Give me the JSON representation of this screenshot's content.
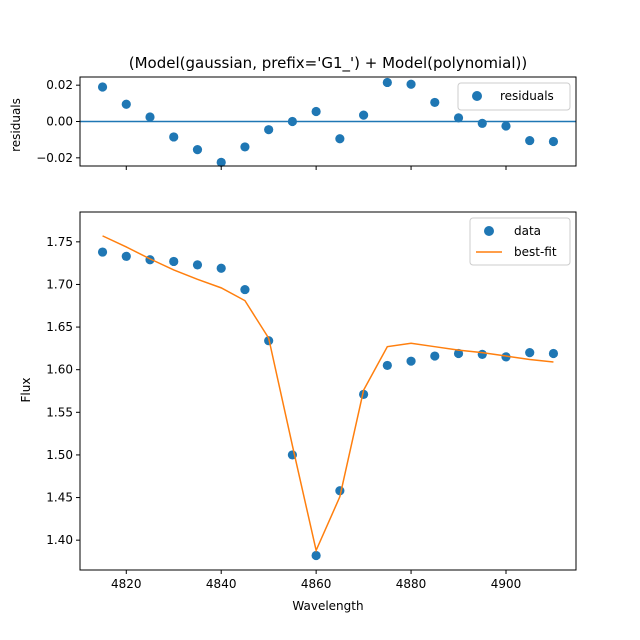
{
  "chart_data": [
    {
      "type": "scatter",
      "title": "(Model(gaussian, prefix='G1_') + Model(polynomial))",
      "xlabel": "",
      "ylabel": "residuals",
      "xlim": [
        4810.25,
        4914.75
      ],
      "ylim": [
        -0.0245,
        0.0245
      ],
      "yticks": [
        -0.02,
        0.0,
        0.02
      ],
      "ytick_labels": [
        "−0.02",
        "0.00",
        "0.02"
      ],
      "xticks": [
        4820,
        4840,
        4860,
        4880,
        4900
      ],
      "show_xtick_labels": false,
      "hline": 0,
      "legend": {
        "position": "top-right",
        "entries": [
          "residuals"
        ]
      },
      "series": [
        {
          "name": "residuals",
          "marker": "circle",
          "color": "#1f77b4",
          "x": [
            4815,
            4820,
            4825,
            4830,
            4835,
            4840,
            4845,
            4850,
            4855,
            4860,
            4865,
            4870,
            4875,
            4880,
            4885,
            4890,
            4895,
            4900,
            4905,
            4910
          ],
          "y": [
            0.019,
            0.0095,
            0.0025,
            -0.0085,
            -0.0155,
            -0.0225,
            -0.014,
            -0.0045,
            0.0,
            0.0055,
            -0.0095,
            0.0035,
            0.0215,
            0.0205,
            0.0105,
            0.002,
            -0.001,
            -0.0025,
            -0.0105,
            -0.011
          ]
        }
      ]
    },
    {
      "type": "line",
      "title": "",
      "xlabel": "Wavelength",
      "ylabel": "Flux",
      "xlim": [
        4810.25,
        4914.75
      ],
      "ylim": [
        1.365,
        1.785
      ],
      "xticks": [
        4820,
        4840,
        4860,
        4880,
        4900
      ],
      "xtick_labels": [
        "4820",
        "4840",
        "4860",
        "4880",
        "4900"
      ],
      "yticks": [
        1.4,
        1.45,
        1.5,
        1.55,
        1.6,
        1.65,
        1.7,
        1.75
      ],
      "ytick_labels": [
        "1.40",
        "1.45",
        "1.50",
        "1.55",
        "1.60",
        "1.65",
        "1.70",
        "1.75"
      ],
      "legend": {
        "position": "top-right",
        "entries": [
          "data",
          "best-fit"
        ]
      },
      "series": [
        {
          "name": "data",
          "marker": "circle",
          "color": "#1f77b4",
          "x": [
            4815,
            4820,
            4825,
            4830,
            4835,
            4840,
            4845,
            4850,
            4855,
            4860,
            4865,
            4870,
            4875,
            4880,
            4885,
            4890,
            4895,
            4900,
            4905,
            4910
          ],
          "y": [
            1.738,
            1.733,
            1.729,
            1.727,
            1.723,
            1.719,
            1.694,
            1.634,
            1.5,
            1.382,
            1.458,
            1.571,
            1.605,
            1.61,
            1.616,
            1.619,
            1.618,
            1.615,
            1.62,
            1.619
          ]
        },
        {
          "name": "best-fit",
          "line": true,
          "color": "#ff7f0e",
          "x": [
            4815,
            4820,
            4825,
            4830,
            4835,
            4840,
            4845,
            4850,
            4855,
            4860,
            4865,
            4870,
            4875,
            4880,
            4885,
            4890,
            4895,
            4900,
            4905,
            4910
          ],
          "y": [
            1.757,
            1.744,
            1.73,
            1.717,
            1.706,
            1.696,
            1.681,
            1.637,
            1.511,
            1.388,
            1.451,
            1.576,
            1.627,
            1.631,
            1.627,
            1.623,
            1.62,
            1.616,
            1.612,
            1.609
          ]
        }
      ]
    }
  ]
}
